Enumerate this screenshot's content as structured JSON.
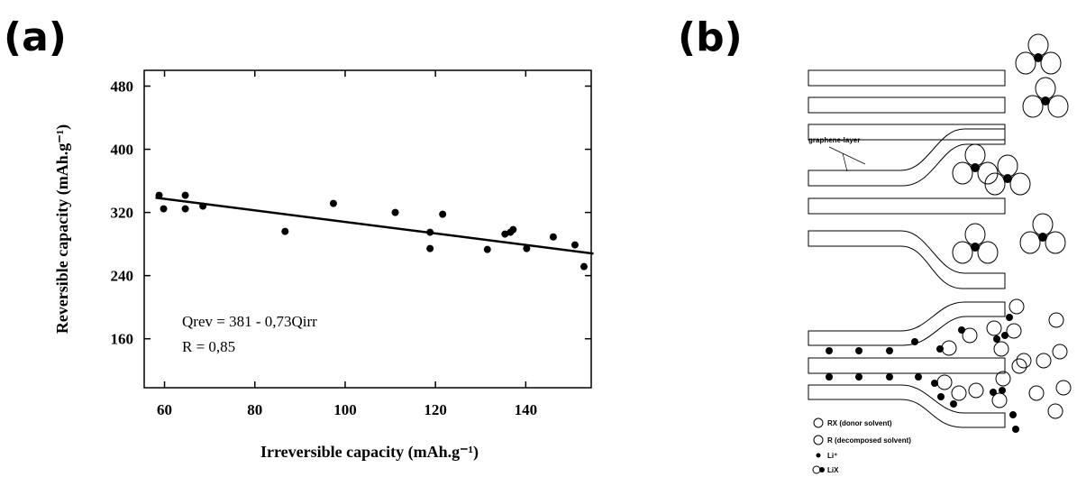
{
  "chart_data": {
    "type": "scatter",
    "xlabel": "Irreversible capacity (mAh.g⁻¹)",
    "ylabel": "Reversible capacity (mAh.g⁻¹)",
    "annotations": [
      "Qrev = 381 - 0,73Qirr",
      "R = 0,85"
    ],
    "color": "#000000",
    "x": [
      58.8,
      59.8,
      64.6,
      64.6,
      68.5,
      86.7,
      97.4,
      111.1,
      118.8,
      118.8,
      121.6,
      131.5,
      135.4,
      136.6,
      137.2,
      140.2,
      146.1,
      150.9,
      152.9
    ],
    "values": [
      341.7,
      324.6,
      341.7,
      324.6,
      328,
      296,
      331.4,
      320,
      294.9,
      274.3,
      317.7,
      273.1,
      292.6,
      294.9,
      298.3,
      274.3,
      289,
      278.9,
      251.4
    ],
    "fit_line": {
      "x": [
        58,
        155
      ],
      "y": [
        338.7,
        267.9
      ]
    },
    "xlim": [
      55.5,
      154.5
    ],
    "ylim": [
      98,
      500
    ],
    "xticks": [
      60,
      80,
      100,
      120,
      140
    ],
    "yticks": [
      160,
      240,
      320,
      400,
      480
    ]
  },
  "panels": [
    "(a)",
    "(b)"
  ],
  "diagram": {
    "layer_label": "graphene-layer",
    "legend": [
      "RX (donor solvent)",
      "R  (decomposed solvent)",
      "Li⁺",
      "LiX"
    ]
  }
}
